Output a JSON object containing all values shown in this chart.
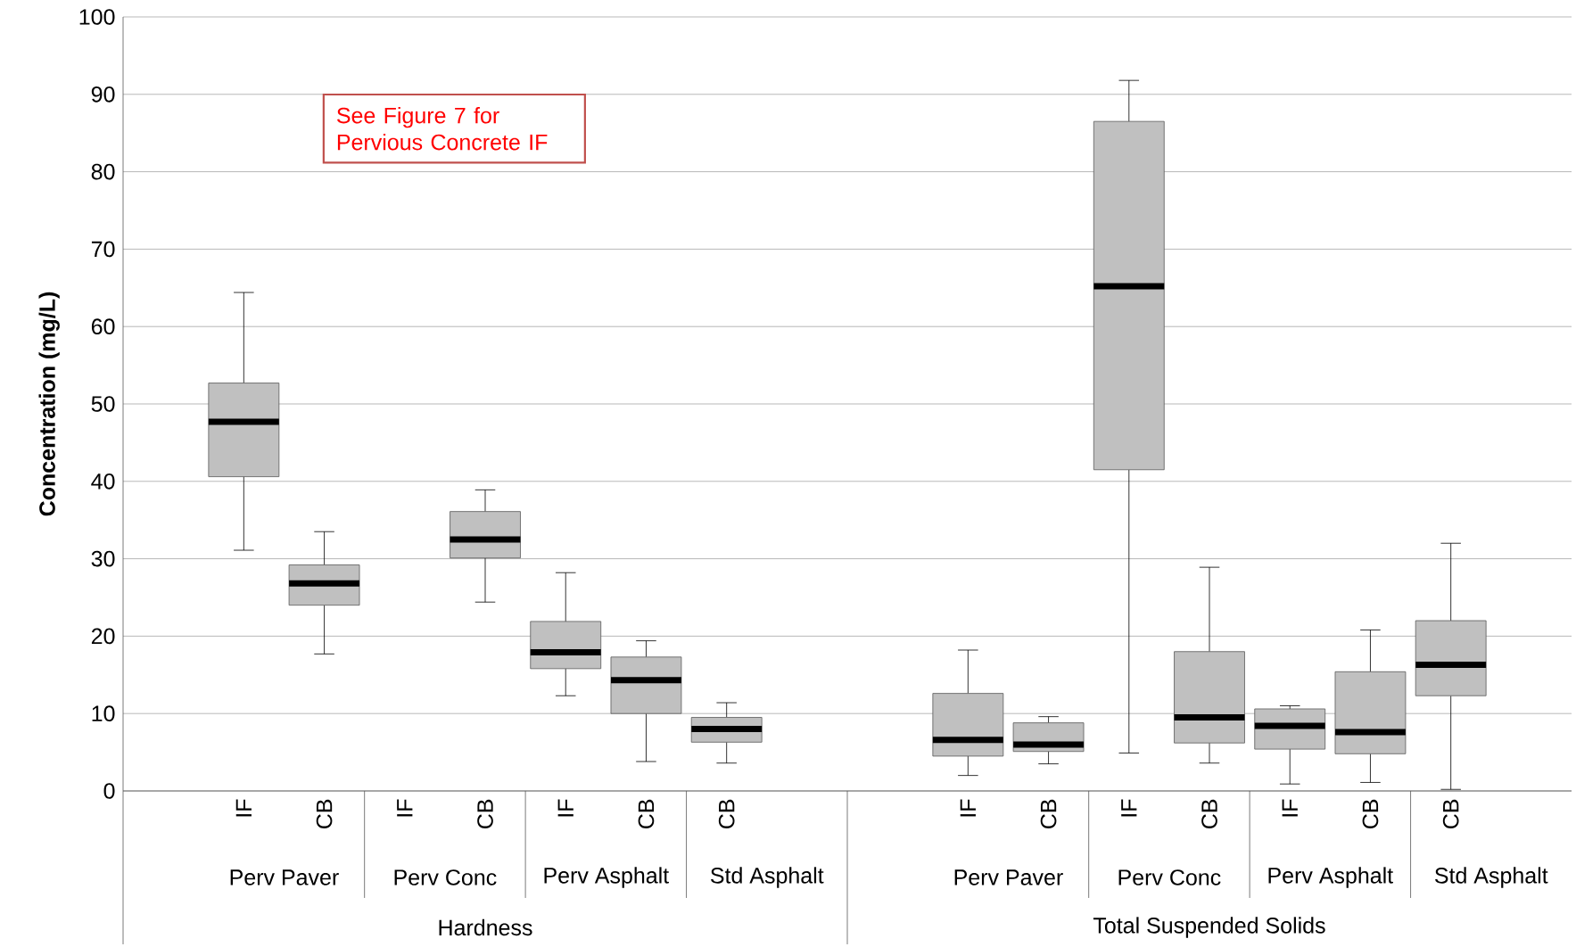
{
  "chart_data": {
    "type": "box",
    "ylabel": "Concentration (mg/L)",
    "categories": [
      null,
      "IF",
      "CB",
      "IF",
      "CB",
      "IF",
      "CB",
      "CB",
      null,
      null,
      "IF",
      "CB",
      "IF",
      "CB",
      "IF",
      "CB",
      "CB",
      null
    ],
    "boxes": [
      null,
      {
        "low": 31.1,
        "q1": 40.6,
        "median": 47.7,
        "q3": 52.7,
        "high": 64.4
      },
      {
        "low": 17.7,
        "q1": 24.0,
        "median": 26.8,
        "q3": 29.2,
        "high": 33.5
      },
      null,
      {
        "low": 24.4,
        "q1": 30.1,
        "median": 32.5,
        "q3": 36.1,
        "high": 38.9
      },
      {
        "low": 12.3,
        "q1": 15.8,
        "median": 17.9,
        "q3": 21.9,
        "high": 28.2
      },
      {
        "low": 3.8,
        "q1": 10.0,
        "median": 14.3,
        "q3": 17.3,
        "high": 19.4
      },
      {
        "low": 3.6,
        "q1": 6.3,
        "median": 8.0,
        "q3": 9.5,
        "high": 11.4
      },
      null,
      null,
      {
        "low": 2.0,
        "q1": 4.5,
        "median": 6.6,
        "q3": 12.6,
        "high": 18.2
      },
      {
        "low": 3.5,
        "q1": 5.1,
        "median": 6.0,
        "q3": 8.8,
        "high": 9.6
      },
      {
        "low": 4.9,
        "q1": 41.5,
        "median": 65.2,
        "q3": 86.5,
        "high": 91.8
      },
      {
        "low": 3.6,
        "q1": 6.2,
        "median": 9.5,
        "q3": 18.0,
        "high": 28.9
      },
      {
        "low": 0.9,
        "q1": 5.4,
        "median": 8.4,
        "q3": 10.6,
        "high": 11.0
      },
      {
        "low": 1.1,
        "q1": 4.8,
        "median": 7.6,
        "q3": 15.4,
        "high": 20.8
      },
      {
        "low": 0.2,
        "q1": 12.3,
        "median": 16.3,
        "q3": 22.0,
        "high": 32.0
      },
      null
    ],
    "color": "#c0c0c0",
    "ylim": [
      0,
      100
    ],
    "yticks": [
      0,
      10,
      20,
      30,
      40,
      50,
      60,
      70,
      80,
      90,
      100
    ],
    "grid": "y",
    "annotations": [
      "See Figure 7 for Pervious Concrete IF",
      "Perv Paver",
      "Perv Conc",
      "Perv Asphalt",
      "Std Asphalt",
      "Perv Paver",
      "Perv Conc",
      "Perv Asphalt",
      "Std Asphalt",
      "Hardness",
      "Total Suspended Solids"
    ]
  }
}
